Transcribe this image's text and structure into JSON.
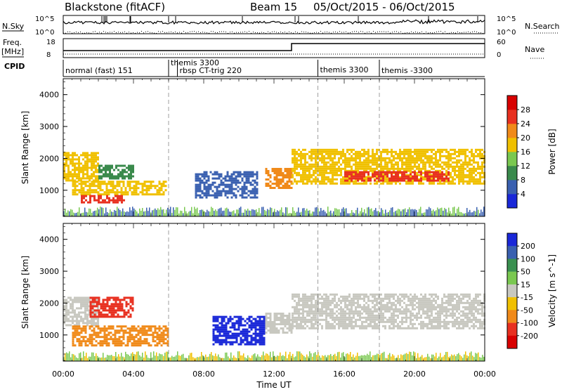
{
  "header": {
    "title": "Blackstone (fitACF)",
    "beam": "Beam 15",
    "dates": "05/Oct/2015 - 06/Oct/2015"
  },
  "strip": {
    "nsky_label": "N.Sky",
    "nsky_top": "10^5",
    "nsky_bottom": "10^0",
    "nsearch_label": "N.Search",
    "nsearch_top": "10^5",
    "nsearch_bottom": "10^0",
    "freq_label": "Freq.",
    "freq_unit": "[MHz]",
    "freq_top": "18",
    "freq_bottom": "8",
    "nave_label": "Nave",
    "nave_top": "60",
    "nave_bottom": "0",
    "cpid_label": "CPID"
  },
  "cpid_segments": [
    {
      "label": "normal (fast) 151",
      "start": 0.0,
      "end": 6.0,
      "row": 0
    },
    {
      "label": "themis 3300",
      "start": 6.0,
      "end": 6.5,
      "row": 0
    },
    {
      "label": "rbsp CT-trig 220",
      "start": 6.5,
      "end": 14.5,
      "row": 1
    },
    {
      "label": "themis 3300",
      "start": 14.5,
      "end": 18.0,
      "row": 0
    },
    {
      "label": "themis -3300",
      "start": 18.0,
      "end": 24.0,
      "row": 1
    }
  ],
  "chart_data": [
    {
      "type": "heatmap",
      "panel": "power",
      "ylabel": "Slant Range [km]",
      "xlabel": "Time UT",
      "x_ticks": [
        "00:00",
        "04:00",
        "08:00",
        "12:00",
        "16:00",
        "20:00",
        "00:00"
      ],
      "x_range_hours": [
        0,
        24
      ],
      "y_ticks": [
        1000,
        2000,
        3000,
        4000
      ],
      "y_range_km": [
        180,
        4500
      ],
      "colorbar": {
        "label": "Power [dB]",
        "ticks": [
          4,
          8,
          12,
          16,
          20,
          24,
          28
        ],
        "colors": [
          "#1a28d8",
          "#3a60b0",
          "#3a8a4c",
          "#7ac850",
          "#f0c000",
          "#f08a1a",
          "#e83020",
          "#d80000"
        ]
      },
      "regions": [
        {
          "t0": 0.0,
          "t1": 2.0,
          "r0": 1300,
          "r1": 2200,
          "level": 4
        },
        {
          "t0": 2.0,
          "t1": 4.0,
          "r0": 1400,
          "r1": 1800,
          "level": 2
        },
        {
          "t0": 0.5,
          "t1": 5.8,
          "r0": 900,
          "r1": 1300,
          "level": 4
        },
        {
          "t0": 1.0,
          "t1": 3.5,
          "r0": 650,
          "r1": 850,
          "level": 6
        },
        {
          "t0": 7.5,
          "t1": 11.0,
          "r0": 800,
          "r1": 1600,
          "level": 1
        },
        {
          "t0": 11.5,
          "t1": 13.0,
          "r0": 1100,
          "r1": 1700,
          "level": 5
        },
        {
          "t0": 13.0,
          "t1": 24.0,
          "r0": 1200,
          "r1": 2300,
          "level": 4
        },
        {
          "t0": 16.0,
          "t1": 22.0,
          "r0": 1300,
          "r1": 1600,
          "level": 6
        }
      ]
    },
    {
      "type": "heatmap",
      "panel": "velocity",
      "ylabel": "Slant Range [km]",
      "xlabel": "Time UT",
      "x_ticks": [
        "00:00",
        "04:00",
        "08:00",
        "12:00",
        "16:00",
        "20:00",
        "00:00"
      ],
      "x_range_hours": [
        0,
        24
      ],
      "y_ticks": [
        1000,
        2000,
        3000,
        4000
      ],
      "y_range_km": [
        180,
        4500
      ],
      "colorbar": {
        "label": "Velocity [m s^-1]",
        "ticks": [
          200,
          100,
          50,
          15,
          -15,
          -50,
          -100,
          -200
        ],
        "colors": [
          "#1a28d8",
          "#3a60b0",
          "#3a9050",
          "#7ac850",
          "#c8c8c0",
          "#f0c000",
          "#f08a1a",
          "#e83020",
          "#d80000"
        ]
      },
      "regions": [
        {
          "t0": 0.0,
          "t1": 2.0,
          "r0": 1300,
          "r1": 2200,
          "value": 0
        },
        {
          "t0": 1.5,
          "t1": 4.0,
          "r0": 1600,
          "r1": 2200,
          "value": -150
        },
        {
          "t0": 0.5,
          "t1": 6.0,
          "r0": 700,
          "r1": 1300,
          "value": -60
        },
        {
          "t0": 8.5,
          "t1": 11.5,
          "r0": 700,
          "r1": 1600,
          "value": 150
        },
        {
          "t0": 11.5,
          "t1": 13.0,
          "r0": 1100,
          "r1": 1700,
          "value": 0
        },
        {
          "t0": 13.0,
          "t1": 24.0,
          "r0": 1200,
          "r1": 2300,
          "value": 0
        }
      ]
    }
  ]
}
